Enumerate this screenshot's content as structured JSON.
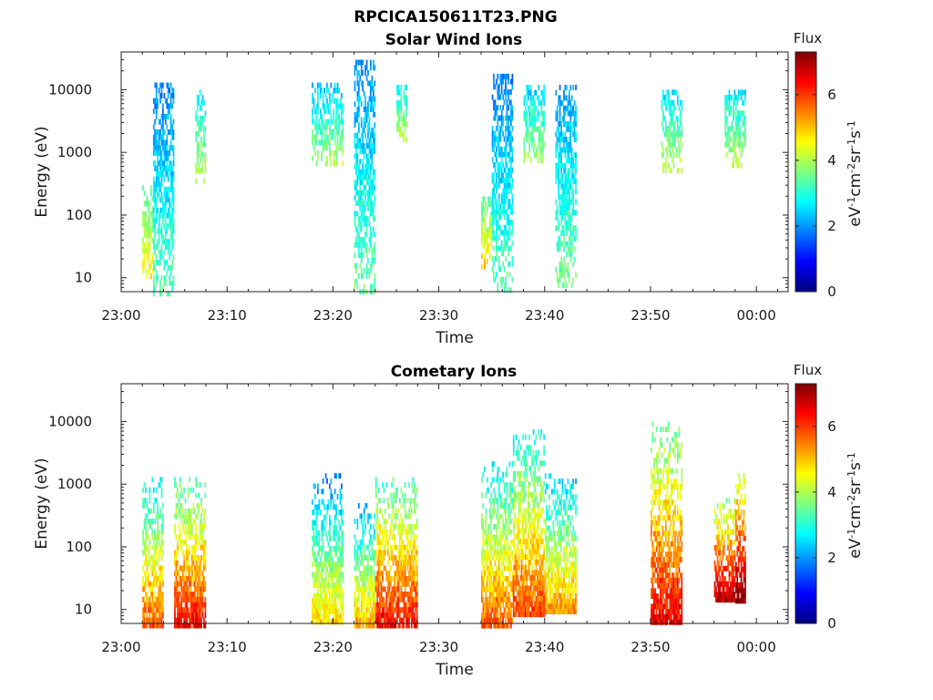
{
  "figure_title": "RPCICA150611T23.PNG",
  "colormap": [
    "#00007f",
    "#0000ff",
    "#007fff",
    "#00ffff",
    "#7fff7f",
    "#ffff00",
    "#ff7f00",
    "#ff0000",
    "#7f0000"
  ],
  "chart_data": [
    {
      "type": "heatmap",
      "title": "Solar Wind Ions",
      "xlabel": "Time",
      "ylabel": "Energy (eV)",
      "x_range": [
        "23:00",
        "00:03"
      ],
      "x_ticks": [
        "23:00",
        "23:10",
        "23:20",
        "23:30",
        "23:40",
        "23:50",
        "00:00"
      ],
      "y_scale": "log",
      "y_range": [
        6,
        40000
      ],
      "y_ticks": [
        "10",
        "100",
        "1000",
        "10000"
      ],
      "colorbar": {
        "label": "Flux",
        "unit": "eV-1cm-2sr-1s-1",
        "range": [
          0,
          7.3
        ],
        "ticks": [
          "0",
          "2",
          "4",
          "6"
        ]
      },
      "bursts": [
        {
          "t_start": "23:02",
          "t_end": "23:03",
          "e_min": 10,
          "e_max": 300,
          "flux": 3.2
        },
        {
          "t_start": "23:03",
          "t_end": "23:05",
          "e_min": 6,
          "e_max": 13000,
          "flux": 1.8
        },
        {
          "t_start": "23:07",
          "t_end": "23:08",
          "e_min": 350,
          "e_max": 10000,
          "flux": 2.6
        },
        {
          "t_start": "23:18",
          "t_end": "23:21",
          "e_min": 700,
          "e_max": 13000,
          "flux": 2.3
        },
        {
          "t_start": "23:22",
          "t_end": "23:24",
          "e_min": 6,
          "e_max": 30000,
          "flux": 1.9
        },
        {
          "t_start": "23:26",
          "t_end": "23:27",
          "e_min": 1500,
          "e_max": 12000,
          "flux": 2.7
        },
        {
          "t_start": "23:34",
          "t_end": "23:35",
          "e_min": 15,
          "e_max": 200,
          "flux": 3.4
        },
        {
          "t_start": "23:35",
          "t_end": "23:37",
          "e_min": 6,
          "e_max": 18000,
          "flux": 1.8
        },
        {
          "t_start": "23:38",
          "t_end": "23:40",
          "e_min": 700,
          "e_max": 12000,
          "flux": 2.4
        },
        {
          "t_start": "23:41",
          "t_end": "23:43",
          "e_min": 8,
          "e_max": 12000,
          "flux": 2.0
        },
        {
          "t_start": "23:51",
          "t_end": "23:53",
          "e_min": 500,
          "e_max": 10000,
          "flux": 2.6
        },
        {
          "t_start": "23:57",
          "t_end": "23:59",
          "e_min": 600,
          "e_max": 10000,
          "flux": 2.6
        }
      ]
    },
    {
      "type": "heatmap",
      "title": "Cometary Ions",
      "xlabel": "Time",
      "ylabel": "Energy (eV)",
      "x_range": [
        "23:00",
        "00:03"
      ],
      "x_ticks": [
        "23:00",
        "23:10",
        "23:20",
        "23:30",
        "23:40",
        "23:50",
        "00:00"
      ],
      "y_scale": "log",
      "y_range": [
        6,
        40000
      ],
      "y_ticks": [
        "10",
        "100",
        "1000",
        "10000"
      ],
      "colorbar": {
        "label": "Flux",
        "unit": "eV-1cm-2sr-1s-1",
        "range": [
          0,
          7.3
        ],
        "ticks": [
          "0",
          "2",
          "4",
          "6"
        ]
      },
      "bursts": [
        {
          "t_start": "23:02",
          "t_end": "23:04",
          "e_min": 6,
          "e_max": 1300,
          "flux": 5.8
        },
        {
          "t_start": "23:05",
          "t_end": "23:08",
          "e_min": 6,
          "e_max": 1300,
          "flux": 6.4
        },
        {
          "t_start": "23:18",
          "t_end": "23:21",
          "e_min": 6,
          "e_max": 1500,
          "flux": 5.0
        },
        {
          "t_start": "23:22",
          "t_end": "23:24",
          "e_min": 6,
          "e_max": 500,
          "flux": 5.2
        },
        {
          "t_start": "23:24",
          "t_end": "23:28",
          "e_min": 6,
          "e_max": 1300,
          "flux": 6.4
        },
        {
          "t_start": "23:34",
          "t_end": "23:37",
          "e_min": 6,
          "e_max": 2300,
          "flux": 5.8
        },
        {
          "t_start": "23:37",
          "t_end": "23:40",
          "e_min": 8,
          "e_max": 7500,
          "flux": 6.0
        },
        {
          "t_start": "23:40",
          "t_end": "23:43",
          "e_min": 10,
          "e_max": 1800,
          "flux": 5.4
        },
        {
          "t_start": "23:50",
          "t_end": "23:53",
          "e_min": 6,
          "e_max": 10000,
          "flux": 6.6
        },
        {
          "t_start": "23:56",
          "t_end": "23:58",
          "e_min": 15,
          "e_max": 600,
          "flux": 7.0
        },
        {
          "t_start": "23:58",
          "t_end": "23:59",
          "e_min": 15,
          "e_max": 1500,
          "flux": 7.3
        }
      ]
    }
  ]
}
